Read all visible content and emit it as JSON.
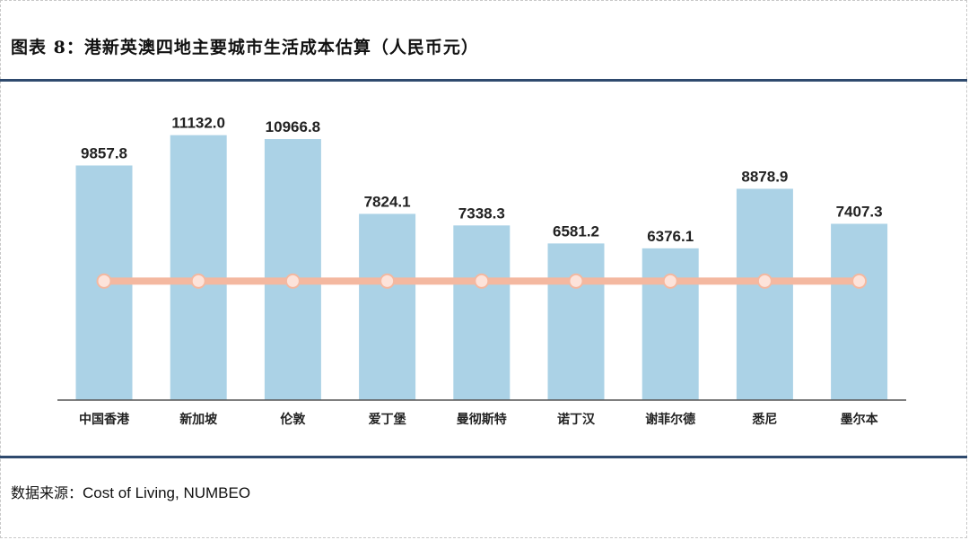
{
  "title": "图表 8：港新英澳四地主要城市生活成本估算（人民币元）",
  "source": {
    "label": "数据来源：",
    "text": "Cost of Living, NUMBEO"
  },
  "colors": {
    "bar": "#abd2e6",
    "line": "#f4b8a0",
    "marker_fill": "#fde3da",
    "rule": "#2f4a6e",
    "axis": "#555555"
  },
  "chart_data": {
    "type": "bar",
    "title": "图表 8：港新英澳四地主要城市生活成本估算（人民币元）",
    "xlabel": "",
    "ylabel": "",
    "ylim": [
      0,
      12000
    ],
    "categories": [
      "中国香港",
      "新加坡",
      "伦敦",
      "爱丁堡",
      "曼彻斯特",
      "诺丁汉",
      "谢菲尔德",
      "悉尼",
      "墨尔本"
    ],
    "series": [
      {
        "name": "生活成本估算",
        "type": "bar",
        "values": [
          9857.8,
          11132.0,
          10966.8,
          7824.1,
          7338.3,
          6581.2,
          6376.1,
          8878.9,
          7407.3
        ],
        "labels": [
          "9857.8",
          "11132.0",
          "10966.8",
          "7824.1",
          "7338.3",
          "6581.2",
          "6376.1",
          "8878.9",
          "7407.3"
        ]
      },
      {
        "name": "参考线",
        "type": "line",
        "values": [
          5000,
          5000,
          5000,
          5000,
          5000,
          5000,
          5000,
          5000,
          5000
        ]
      }
    ],
    "grid": false,
    "legend": "none"
  }
}
